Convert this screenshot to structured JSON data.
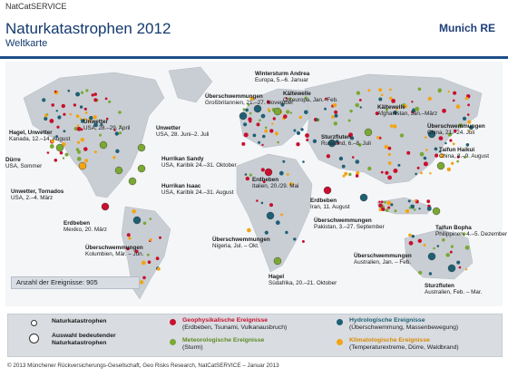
{
  "header": {
    "small": "NatCatSERVICE",
    "title": "Naturkatastrophen 2012",
    "subtitle": "Weltkarte",
    "logo": "Munich RE"
  },
  "colors": {
    "header_line": "#1e4e8a",
    "geophysical": "#c8102e",
    "meteorological": "#7aa833",
    "hydrological": "#1f5f73",
    "climatological": "#f2a413",
    "land": "#c9ced4",
    "ocean": "#f4f6f8"
  },
  "labels": [
    {
      "title": "Wintersturm Andrea",
      "text": "Europa, 5.–6. Januar"
    },
    {
      "title": "Überschwemmungen",
      "text": "Großbritannien, 21.–27. November"
    },
    {
      "title": "Kältewelle",
      "text": "Osteuropa, Jan.–Feb."
    },
    {
      "title": "Kältewelle",
      "text": "Afghanistan, Jan.–März"
    },
    {
      "title": "Überschwemmungen",
      "text": "China, 21.–24. Juli"
    },
    {
      "title": "Unwetter",
      "text": "USA, 28.–29. April"
    },
    {
      "title": "Hagel, Unwetter",
      "text": "Kanada, 12.–14. August"
    },
    {
      "title": "Unwetter",
      "text": "USA, 28. Juni–2. Juli"
    },
    {
      "title": "Sturzfluten",
      "text": "Russland, 6.–8. Juli"
    },
    {
      "title": "Taifun Haikui",
      "text": "China, 8.–9. August"
    },
    {
      "title": "Dürre",
      "text": "USA, Sommer"
    },
    {
      "title": "Hurrikan Sandy",
      "text": "USA, Karibik 24.–31. Oktober"
    },
    {
      "title": "Hurrikan Isaac",
      "text": "USA, Karibik 24.–31. August"
    },
    {
      "title": "Unwetter, Tornados",
      "text": "USA, 2.–4. März"
    },
    {
      "title": "Erdbeben",
      "text": "Italien, 20./29. Mai"
    },
    {
      "title": "Erdbeben",
      "text": "Iran, 11. August"
    },
    {
      "title": "Erdbeben",
      "text": "Mexiko, 20. März"
    },
    {
      "title": "Überschwemmungen",
      "text": "Pakistan, 3.–27. September"
    },
    {
      "title": "Taifun Bopha",
      "text": "Philippinen, 4.–5. Dezember"
    },
    {
      "title": "Überschwemmungen",
      "text": "Kolumbien, Mär. – Jun."
    },
    {
      "title": "Überschwemmungen",
      "text": "Nigeria, Jul. – Okt."
    },
    {
      "title": "Überschwemmungen",
      "text": "Australien, Jan. – Feb."
    },
    {
      "title": "Hagel",
      "text": "Südafrika, 20.–21. Oktober"
    },
    {
      "title": "Sturzfluten",
      "text": "Australien, Feb. – Mar."
    }
  ],
  "count_label": "Anzahl der Ereignisse: 905",
  "legend": {
    "natcat": "Naturkatastrophen",
    "auswahl": "Auswahl bedeutender Naturkatastrophen",
    "geo_title": "Geophysikalische Ereignisse",
    "geo_sub": "(Erdbeben, Tsunami, Vulkanausbruch)",
    "met_title": "Meteorologische Ereignisse",
    "met_sub": "(Sturm)",
    "hyd_title": "Hydrologische Ereignisse",
    "hyd_sub": "(Überschwemmung, Massenbewegung)",
    "cli_title": "Klimatologische Ereignisse",
    "cli_sub": "(Temperaturextreme, Dürre, Waldbrand)"
  },
  "footer": "© 2013 Münchener Rückversicherungs-Gesellschaft, Geo Risks Research, NatCatSERVICE – Januar 2013"
}
